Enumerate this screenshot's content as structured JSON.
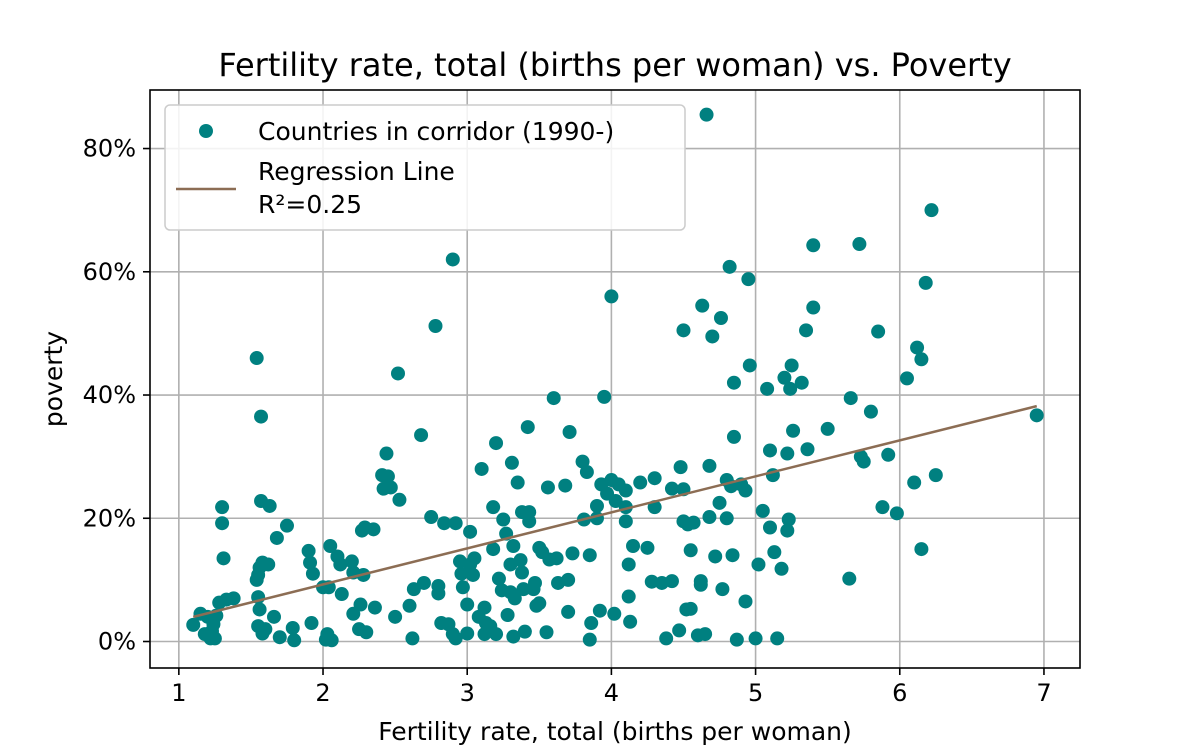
{
  "chart_data": {
    "type": "scatter",
    "title": "Fertility rate, total (births per woman) vs. Poverty",
    "xlabel": "Fertility rate, total (births per woman)",
    "ylabel": "poverty",
    "xlim": [
      0.8,
      7.25
    ],
    "ylim": [
      -0.043,
      0.895
    ],
    "x_ticks": [
      1,
      2,
      3,
      4,
      5,
      6,
      7
    ],
    "x_tick_labels": [
      "1",
      "2",
      "3",
      "4",
      "5",
      "6",
      "7"
    ],
    "y_ticks": [
      0,
      0.2,
      0.4,
      0.6,
      0.8
    ],
    "y_tick_labels": [
      "0%",
      "20%",
      "40%",
      "60%",
      "80%"
    ],
    "grid": true,
    "legend_position": "top-left",
    "colors": {
      "points": "#008080",
      "regression": "#8c6d54"
    },
    "series": [
      {
        "name": "Countries in corridor (1990-)",
        "kind": "scatter",
        "points": [
          [
            1.1,
            0.027
          ],
          [
            1.15,
            0.045
          ],
          [
            1.18,
            0.012
          ],
          [
            1.2,
            0.04
          ],
          [
            1.22,
            0.005
          ],
          [
            1.23,
            0.017
          ],
          [
            1.24,
            0.028
          ],
          [
            1.25,
            0.005
          ],
          [
            1.26,
            0.042
          ],
          [
            1.28,
            0.063
          ],
          [
            1.3,
            0.218
          ],
          [
            1.3,
            0.192
          ],
          [
            1.31,
            0.135
          ],
          [
            1.33,
            0.068
          ],
          [
            1.38,
            0.07
          ],
          [
            1.54,
            0.46
          ],
          [
            1.54,
            0.1
          ],
          [
            1.55,
            0.108
          ],
          [
            1.55,
            0.072
          ],
          [
            1.55,
            0.025
          ],
          [
            1.56,
            0.12
          ],
          [
            1.56,
            0.052
          ],
          [
            1.57,
            0.365
          ],
          [
            1.57,
            0.228
          ],
          [
            1.58,
            0.128
          ],
          [
            1.58,
            0.013
          ],
          [
            1.6,
            0.02
          ],
          [
            1.62,
            0.125
          ],
          [
            1.63,
            0.22
          ],
          [
            1.66,
            0.04
          ],
          [
            1.68,
            0.168
          ],
          [
            1.7,
            0.007
          ],
          [
            1.75,
            0.188
          ],
          [
            1.79,
            0.022
          ],
          [
            1.8,
            0.002
          ],
          [
            1.9,
            0.147
          ],
          [
            1.91,
            0.128
          ],
          [
            1.92,
            0.03
          ],
          [
            1.93,
            0.11
          ],
          [
            2.0,
            0.088
          ],
          [
            2.02,
            0.003
          ],
          [
            2.03,
            0.012
          ],
          [
            2.04,
            0.088
          ],
          [
            2.05,
            0.155
          ],
          [
            2.06,
            0.002
          ],
          [
            2.1,
            0.138
          ],
          [
            2.12,
            0.125
          ],
          [
            2.13,
            0.077
          ],
          [
            2.2,
            0.13
          ],
          [
            2.21,
            0.112
          ],
          [
            2.21,
            0.045
          ],
          [
            2.25,
            0.02
          ],
          [
            2.26,
            0.06
          ],
          [
            2.27,
            0.18
          ],
          [
            2.28,
            0.108
          ],
          [
            2.29,
            0.185
          ],
          [
            2.3,
            0.015
          ],
          [
            2.35,
            0.182
          ],
          [
            2.36,
            0.055
          ],
          [
            2.41,
            0.27
          ],
          [
            2.42,
            0.248
          ],
          [
            2.44,
            0.305
          ],
          [
            2.45,
            0.268
          ],
          [
            2.47,
            0.25
          ],
          [
            2.5,
            0.04
          ],
          [
            2.52,
            0.435
          ],
          [
            2.53,
            0.23
          ],
          [
            2.6,
            0.058
          ],
          [
            2.62,
            0.005
          ],
          [
            2.63,
            0.085
          ],
          [
            2.68,
            0.335
          ],
          [
            2.7,
            0.095
          ],
          [
            2.75,
            0.202
          ],
          [
            2.78,
            0.512
          ],
          [
            2.8,
            0.09
          ],
          [
            2.8,
            0.078
          ],
          [
            2.82,
            0.03
          ],
          [
            2.84,
            0.192
          ],
          [
            2.87,
            0.028
          ],
          [
            2.9,
            0.62
          ],
          [
            2.9,
            0.012
          ],
          [
            2.92,
            0.192
          ],
          [
            2.92,
            0.005
          ],
          [
            2.95,
            0.13
          ],
          [
            2.96,
            0.11
          ],
          [
            2.97,
            0.088
          ],
          [
            3.0,
            0.013
          ],
          [
            3.0,
            0.06
          ],
          [
            3.02,
            0.178
          ],
          [
            3.02,
            0.125
          ],
          [
            3.04,
            0.108
          ],
          [
            3.05,
            0.135
          ],
          [
            3.08,
            0.04
          ],
          [
            3.1,
            0.28
          ],
          [
            3.12,
            0.055
          ],
          [
            3.12,
            0.012
          ],
          [
            3.13,
            0.03
          ],
          [
            3.16,
            0.025
          ],
          [
            3.18,
            0.218
          ],
          [
            3.18,
            0.15
          ],
          [
            3.2,
            0.322
          ],
          [
            3.2,
            0.012
          ],
          [
            3.22,
            0.102
          ],
          [
            3.24,
            0.083
          ],
          [
            3.25,
            0.198
          ],
          [
            3.27,
            0.175
          ],
          [
            3.28,
            0.043
          ],
          [
            3.3,
            0.125
          ],
          [
            3.3,
            0.08
          ],
          [
            3.31,
            0.29
          ],
          [
            3.32,
            0.155
          ],
          [
            3.32,
            0.008
          ],
          [
            3.33,
            0.07
          ],
          [
            3.35,
            0.258
          ],
          [
            3.37,
            0.132
          ],
          [
            3.38,
            0.21
          ],
          [
            3.38,
            0.112
          ],
          [
            3.39,
            0.085
          ],
          [
            3.4,
            0.016
          ],
          [
            3.42,
            0.348
          ],
          [
            3.43,
            0.21
          ],
          [
            3.43,
            0.195
          ],
          [
            3.46,
            0.085
          ],
          [
            3.47,
            0.095
          ],
          [
            3.48,
            0.058
          ],
          [
            3.5,
            0.062
          ],
          [
            3.5,
            0.152
          ],
          [
            3.52,
            0.145
          ],
          [
            3.55,
            0.015
          ],
          [
            3.56,
            0.25
          ],
          [
            3.57,
            0.133
          ],
          [
            3.6,
            0.395
          ],
          [
            3.62,
            0.135
          ],
          [
            3.63,
            0.095
          ],
          [
            3.68,
            0.253
          ],
          [
            3.7,
            0.1
          ],
          [
            3.7,
            0.048
          ],
          [
            3.71,
            0.34
          ],
          [
            3.73,
            0.143
          ],
          [
            3.8,
            0.292
          ],
          [
            3.81,
            0.198
          ],
          [
            3.83,
            0.275
          ],
          [
            3.85,
            0.003
          ],
          [
            3.85,
            0.14
          ],
          [
            3.86,
            0.03
          ],
          [
            3.9,
            0.22
          ],
          [
            3.9,
            0.2
          ],
          [
            3.92,
            0.05
          ],
          [
            3.93,
            0.255
          ],
          [
            3.95,
            0.397
          ],
          [
            3.97,
            0.24
          ],
          [
            4.0,
            0.56
          ],
          [
            4.0,
            0.262
          ],
          [
            4.02,
            0.045
          ],
          [
            4.03,
            0.228
          ],
          [
            4.05,
            0.255
          ],
          [
            4.1,
            0.245
          ],
          [
            4.1,
            0.218
          ],
          [
            4.1,
            0.195
          ],
          [
            4.12,
            0.125
          ],
          [
            4.12,
            0.073
          ],
          [
            4.13,
            0.032
          ],
          [
            4.15,
            0.155
          ],
          [
            4.2,
            0.258
          ],
          [
            4.25,
            0.152
          ],
          [
            4.28,
            0.097
          ],
          [
            4.3,
            0.265
          ],
          [
            4.3,
            0.218
          ],
          [
            4.35,
            0.095
          ],
          [
            4.38,
            0.005
          ],
          [
            4.42,
            0.248
          ],
          [
            4.42,
            0.098
          ],
          [
            4.47,
            0.018
          ],
          [
            4.48,
            0.283
          ],
          [
            4.5,
            0.247
          ],
          [
            4.5,
            0.195
          ],
          [
            4.5,
            0.505
          ],
          [
            4.52,
            0.052
          ],
          [
            4.53,
            0.19
          ],
          [
            4.55,
            0.148
          ],
          [
            4.55,
            0.053
          ],
          [
            4.57,
            0.193
          ],
          [
            4.6,
            0.01
          ],
          [
            4.62,
            0.092
          ],
          [
            4.62,
            0.098
          ],
          [
            4.63,
            0.545
          ],
          [
            4.65,
            0.012
          ],
          [
            4.66,
            0.855
          ],
          [
            4.68,
            0.285
          ],
          [
            4.68,
            0.202
          ],
          [
            4.7,
            0.495
          ],
          [
            4.72,
            0.138
          ],
          [
            4.75,
            0.225
          ],
          [
            4.76,
            0.525
          ],
          [
            4.77,
            0.085
          ],
          [
            4.8,
            0.2
          ],
          [
            4.8,
            0.262
          ],
          [
            4.82,
            0.608
          ],
          [
            4.83,
            0.252
          ],
          [
            4.84,
            0.14
          ],
          [
            4.85,
            0.42
          ],
          [
            4.85,
            0.332
          ],
          [
            4.87,
            0.003
          ],
          [
            4.9,
            0.255
          ],
          [
            4.93,
            0.065
          ],
          [
            4.93,
            0.245
          ],
          [
            4.95,
            0.588
          ],
          [
            4.96,
            0.448
          ],
          [
            5.0,
            0.005
          ],
          [
            5.02,
            0.125
          ],
          [
            5.05,
            0.212
          ],
          [
            5.08,
            0.41
          ],
          [
            5.1,
            0.185
          ],
          [
            5.1,
            0.31
          ],
          [
            5.12,
            0.27
          ],
          [
            5.13,
            0.145
          ],
          [
            5.15,
            0.005
          ],
          [
            5.18,
            0.118
          ],
          [
            5.2,
            0.428
          ],
          [
            5.22,
            0.305
          ],
          [
            5.22,
            0.18
          ],
          [
            5.23,
            0.198
          ],
          [
            5.24,
            0.41
          ],
          [
            5.25,
            0.448
          ],
          [
            5.26,
            0.342
          ],
          [
            5.32,
            0.42
          ],
          [
            5.35,
            0.505
          ],
          [
            5.36,
            0.312
          ],
          [
            5.4,
            0.643
          ],
          [
            5.4,
            0.542
          ],
          [
            5.5,
            0.345
          ],
          [
            5.65,
            0.102
          ],
          [
            5.66,
            0.395
          ],
          [
            5.72,
            0.645
          ],
          [
            5.73,
            0.3
          ],
          [
            5.75,
            0.292
          ],
          [
            5.8,
            0.373
          ],
          [
            5.85,
            0.503
          ],
          [
            5.88,
            0.218
          ],
          [
            5.92,
            0.303
          ],
          [
            5.98,
            0.208
          ],
          [
            6.05,
            0.427
          ],
          [
            6.1,
            0.258
          ],
          [
            6.12,
            0.477
          ],
          [
            6.15,
            0.458
          ],
          [
            6.15,
            0.15
          ],
          [
            6.18,
            0.582
          ],
          [
            6.22,
            0.7
          ],
          [
            6.25,
            0.27
          ],
          [
            6.95,
            0.367
          ]
        ]
      },
      {
        "name": "Regression Line",
        "kind": "line",
        "x": [
          1.1,
          6.95
        ],
        "y": [
          0.04,
          0.382
        ]
      }
    ],
    "legend": [
      {
        "label": "Countries in corridor (1990-)",
        "marker": "dot"
      },
      {
        "label": "Regression Line",
        "label2": "R²=0.25",
        "marker": "line"
      }
    ]
  }
}
